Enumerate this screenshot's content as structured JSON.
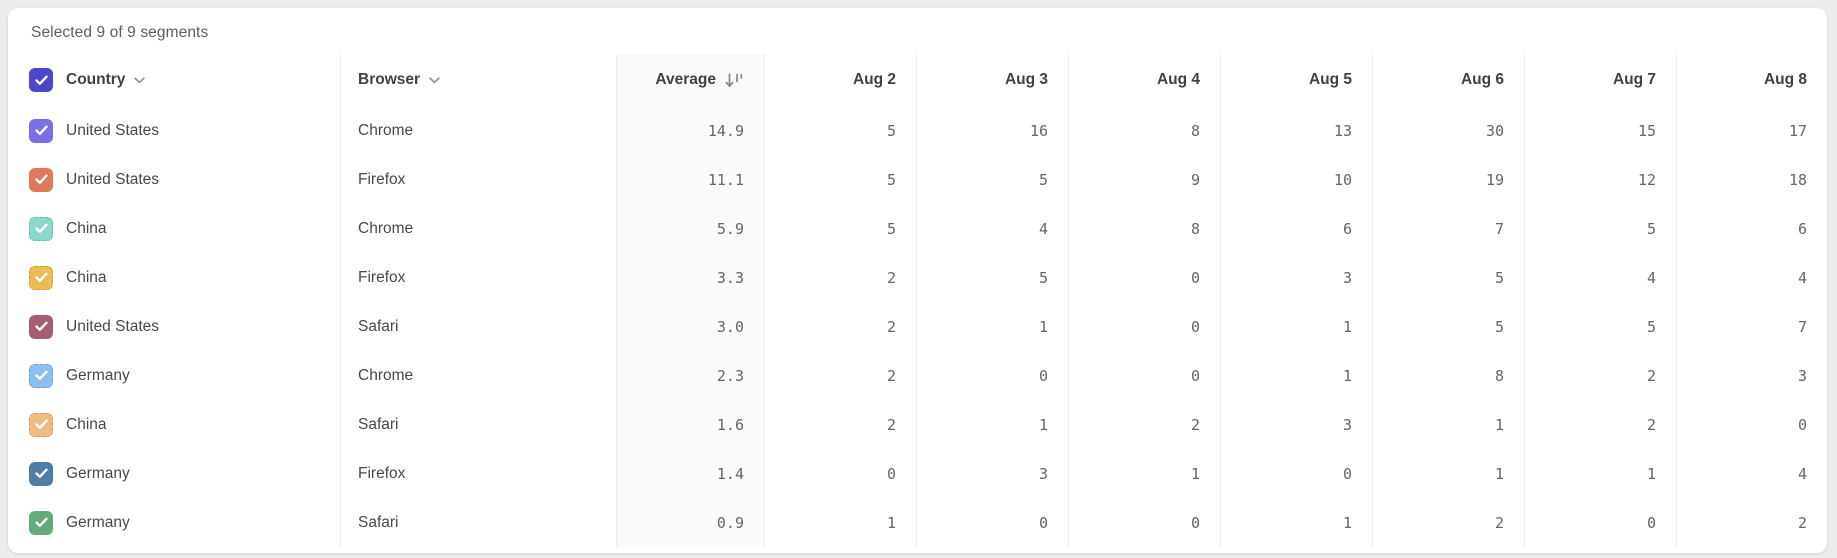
{
  "status_bar": {
    "selected_text": "Selected 9 of 9 segments"
  },
  "table": {
    "columns": {
      "country": {
        "label": "Country",
        "icon": "chevron-down-icon"
      },
      "browser": {
        "label": "Browser",
        "icon": "chevron-down-icon"
      },
      "average": {
        "label": "Average",
        "icon": "sort-descending-icon"
      },
      "dates": [
        "Aug 2",
        "Aug 3",
        "Aug 4",
        "Aug 5",
        "Aug 6",
        "Aug 7",
        "Aug 8"
      ]
    },
    "header_checkbox": {
      "checked": true,
      "color": "#4b46ca"
    },
    "rows": [
      {
        "country": "United States",
        "browser": "Chrome",
        "average": "14.9",
        "values": [
          5,
          16,
          8,
          13,
          30,
          15,
          17
        ],
        "checkbox": {
          "checked": true,
          "color": "#7a6fea",
          "style": "solid"
        }
      },
      {
        "country": "United States",
        "browser": "Firefox",
        "average": "11.1",
        "values": [
          5,
          5,
          9,
          10,
          19,
          12,
          18
        ],
        "checkbox": {
          "checked": true,
          "color": "#e0795e",
          "style": "solid"
        }
      },
      {
        "country": "China",
        "browser": "Chrome",
        "average": "5.9",
        "values": [
          5,
          4,
          8,
          6,
          7,
          5,
          6
        ],
        "checkbox": {
          "checked": true,
          "color": "#8ed7cc",
          "style": "dashed",
          "border_color": "#5abfae"
        }
      },
      {
        "country": "China",
        "browser": "Firefox",
        "average": "3.3",
        "values": [
          2,
          5,
          0,
          3,
          5,
          4,
          4
        ],
        "checkbox": {
          "checked": true,
          "color": "#e9bc55",
          "style": "dashed",
          "border_color": "#d3a02e"
        }
      },
      {
        "country": "United States",
        "browser": "Safari",
        "average": "3.0",
        "values": [
          2,
          1,
          0,
          1,
          5,
          5,
          7
        ],
        "checkbox": {
          "checked": true,
          "color": "#a55d70",
          "style": "solid"
        }
      },
      {
        "country": "Germany",
        "browser": "Chrome",
        "average": "2.3",
        "values": [
          2,
          0,
          0,
          1,
          8,
          2,
          3
        ],
        "checkbox": {
          "checked": true,
          "color": "#8cc0ee",
          "style": "dashed",
          "border_color": "#61a0dc"
        }
      },
      {
        "country": "China",
        "browser": "Safari",
        "average": "1.6",
        "values": [
          2,
          1,
          2,
          3,
          1,
          2,
          0
        ],
        "checkbox": {
          "checked": true,
          "color": "#efbd84",
          "style": "dashed",
          "border_color": "#df9a4b"
        }
      },
      {
        "country": "Germany",
        "browser": "Firefox",
        "average": "1.4",
        "values": [
          0,
          3,
          1,
          0,
          1,
          1,
          4
        ],
        "checkbox": {
          "checked": true,
          "color": "#4e7ea6",
          "style": "solid"
        }
      },
      {
        "country": "Germany",
        "browser": "Safari",
        "average": "0.9",
        "values": [
          1,
          0,
          0,
          1,
          2,
          0,
          2
        ],
        "checkbox": {
          "checked": true,
          "color": "#64aa7b",
          "style": "solid"
        }
      }
    ]
  },
  "colors": {
    "page_background": "#ededee",
    "card_background": "#ffffff",
    "separator": "#ececee",
    "average_column_background": "#fafafa",
    "header_text": "#3f4147",
    "row_text": "#46484f",
    "number_text": "#63656c",
    "status_text": "#5c5e66",
    "icon_gray": "#8a8c94"
  }
}
